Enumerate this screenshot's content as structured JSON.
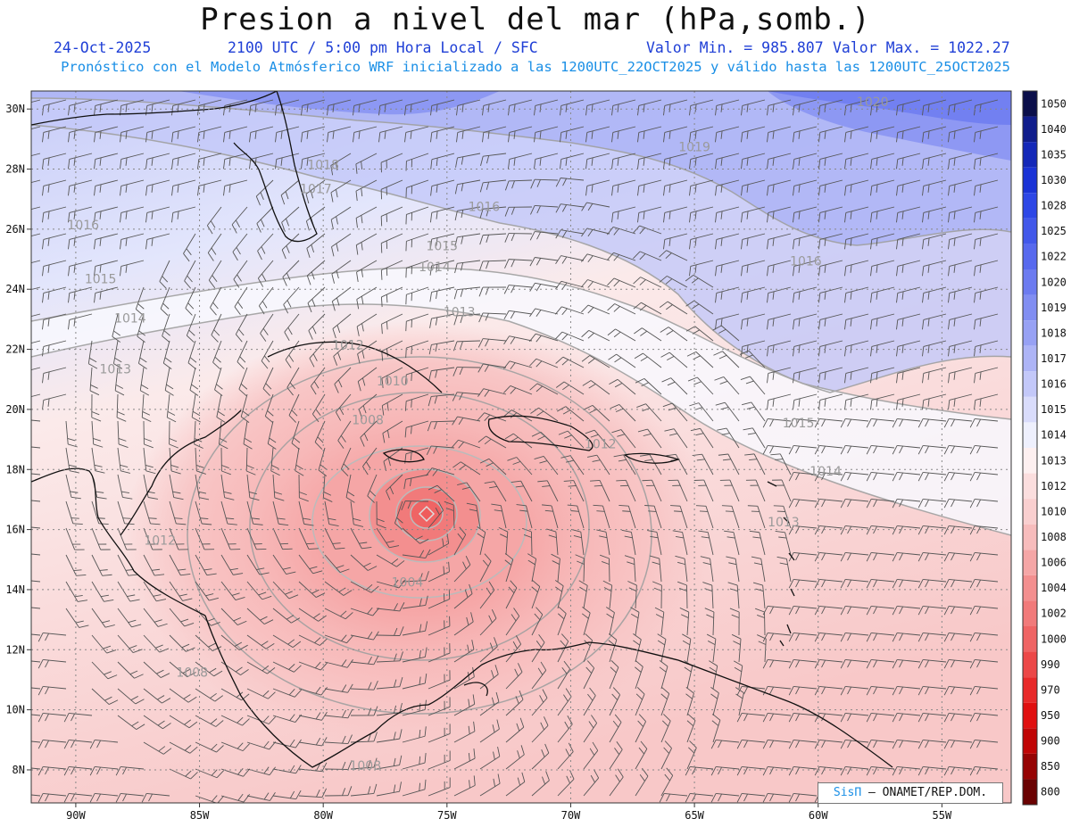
{
  "header": {
    "title": "Presion a nivel del mar (hPa,somb.)",
    "date": "24-Oct-2025",
    "time": "2100 UTC / 5:00 pm Hora Local / SFC",
    "min_value": "Valor Min. = 985.807",
    "max_value": "Valor Max. = 1022.27",
    "description": "Pronóstico con el Modelo Atmósferico WRF inicializado a las 1200UTC_22OCT2025 y válido hasta las  1200UTC_25OCT2025"
  },
  "map": {
    "lon_range": [
      -91.8,
      -52.2
    ],
    "lat_range": [
      6.9,
      30.6
    ],
    "lon_ticks": [
      {
        "lon": -90,
        "label": "90W"
      },
      {
        "lon": -85,
        "label": "85W"
      },
      {
        "lon": -80,
        "label": "80W"
      },
      {
        "lon": -75,
        "label": "75W"
      },
      {
        "lon": -70,
        "label": "70W"
      },
      {
        "lon": -65,
        "label": "65W"
      },
      {
        "lon": -60,
        "label": "60W"
      },
      {
        "lon": -55,
        "label": "55W"
      }
    ],
    "lat_ticks": [
      {
        "lat": 8,
        "label": "8N"
      },
      {
        "lat": 10,
        "label": "10N"
      },
      {
        "lat": 12,
        "label": "12N"
      },
      {
        "lat": 14,
        "label": "14N"
      },
      {
        "lat": 16,
        "label": "16N"
      },
      {
        "lat": 18,
        "label": "18N"
      },
      {
        "lat": 20,
        "label": "20N"
      },
      {
        "lat": 22,
        "label": "22N"
      },
      {
        "lat": 24,
        "label": "24N"
      },
      {
        "lat": 26,
        "label": "26N"
      },
      {
        "lat": 28,
        "label": "28N"
      },
      {
        "lat": 30,
        "label": "30N"
      }
    ],
    "storm_center": {
      "lon": -76.0,
      "lat": 16.4,
      "min_pressure": 985.807
    },
    "contour_labels": [
      {
        "text": "1020",
        "lon": -57.8,
        "lat": 30.1
      },
      {
        "text": "1019",
        "lon": -65.0,
        "lat": 28.6
      },
      {
        "text": "1018",
        "lon": -80.0,
        "lat": 28.0
      },
      {
        "text": "1017",
        "lon": -80.3,
        "lat": 27.2
      },
      {
        "text": "1016",
        "lon": -89.7,
        "lat": 26.0
      },
      {
        "text": "1016",
        "lon": -73.5,
        "lat": 26.6
      },
      {
        "text": "1016",
        "lon": -60.5,
        "lat": 24.8
      },
      {
        "text": "1015",
        "lon": -89.0,
        "lat": 24.2
      },
      {
        "text": "1015",
        "lon": -75.2,
        "lat": 25.3
      },
      {
        "text": "1015",
        "lon": -60.8,
        "lat": 19.4
      },
      {
        "text": "1014",
        "lon": -87.8,
        "lat": 22.9
      },
      {
        "text": "1014",
        "lon": -75.5,
        "lat": 24.6
      },
      {
        "text": "1014",
        "lon": -59.7,
        "lat": 17.8
      },
      {
        "text": "1013",
        "lon": -74.5,
        "lat": 23.1
      },
      {
        "text": "1013",
        "lon": -88.4,
        "lat": 21.2
      },
      {
        "text": "1013",
        "lon": -61.4,
        "lat": 16.1
      },
      {
        "text": "1012",
        "lon": -79.0,
        "lat": 22.0
      },
      {
        "text": "1012",
        "lon": -68.8,
        "lat": 18.7
      },
      {
        "text": "1012",
        "lon": -86.6,
        "lat": 15.5
      },
      {
        "text": "1010",
        "lon": -77.2,
        "lat": 20.8
      },
      {
        "text": "1008",
        "lon": -78.2,
        "lat": 19.5
      },
      {
        "text": "1008",
        "lon": -85.3,
        "lat": 11.1
      },
      {
        "text": "1008",
        "lon": -78.3,
        "lat": 8.0
      },
      {
        "text": "1004",
        "lon": -76.6,
        "lat": 14.1
      }
    ]
  },
  "colorbar": {
    "levels": [
      {
        "label": "1050",
        "color": "#0b0f4a"
      },
      {
        "label": "1040",
        "color": "#101d8c"
      },
      {
        "label": "1035",
        "color": "#1428b8"
      },
      {
        "label": "1030",
        "color": "#1a33d6"
      },
      {
        "label": "1028",
        "color": "#2d47e6"
      },
      {
        "label": "1025",
        "color": "#4258ea"
      },
      {
        "label": "1022",
        "color": "#5769ee"
      },
      {
        "label": "1020",
        "color": "#6c7bf0"
      },
      {
        "label": "1019",
        "color": "#818ef2"
      },
      {
        "label": "1018",
        "color": "#97a1f4"
      },
      {
        "label": "1017",
        "color": "#adb4f6"
      },
      {
        "label": "1016",
        "color": "#c3c8f9"
      },
      {
        "label": "1015",
        "color": "#d9dcfb"
      },
      {
        "label": "1014",
        "color": "#eef0fd"
      },
      {
        "label": "1013",
        "color": "#fdf0f0"
      },
      {
        "label": "1012",
        "color": "#fbdede"
      },
      {
        "label": "1010",
        "color": "#f9cfcf"
      },
      {
        "label": "1008",
        "color": "#f7bcbc"
      },
      {
        "label": "1006",
        "color": "#f5a6a6"
      },
      {
        "label": "1004",
        "color": "#f38f8f"
      },
      {
        "label": "1002",
        "color": "#f17a7a"
      },
      {
        "label": "1000",
        "color": "#ef6464"
      },
      {
        "label": "990",
        "color": "#ec4848"
      },
      {
        "label": "970",
        "color": "#e82a2a"
      },
      {
        "label": "950",
        "color": "#e01010"
      },
      {
        "label": "900",
        "color": "#c00606"
      },
      {
        "label": "850",
        "color": "#960404"
      },
      {
        "label": "800",
        "color": "#6a0202"
      }
    ]
  },
  "credit": {
    "brand": "SisΠ",
    "text": "– ONAMET/REP.DOM."
  }
}
